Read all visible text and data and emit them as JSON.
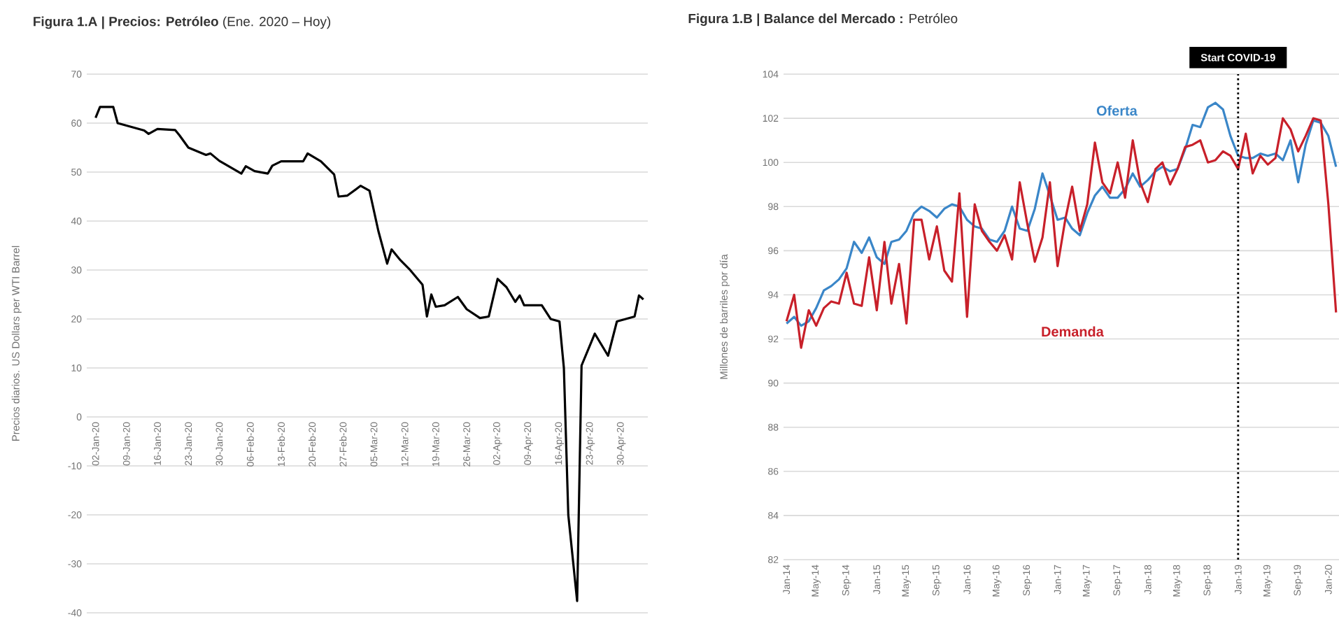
{
  "chart_data": [
    {
      "type": "line",
      "title": "**Figura 1.A | Precios: Petróleo** (Ene. 2020 – Hoy)",
      "ylabel": "Precios diarios. US Dollars per WTI Barrel",
      "series": [
        {
          "color": "#000000",
          "x": [
            "2020-01-02",
            "2020-01-03",
            "2020-01-06",
            "2020-01-07",
            "2020-01-09",
            "2020-01-13",
            "2020-01-14",
            "2020-01-16",
            "2020-01-20",
            "2020-01-21",
            "2020-01-23",
            "2020-01-27",
            "2020-01-28",
            "2020-01-30",
            "2020-02-04",
            "2020-02-05",
            "2020-02-07",
            "2020-02-10",
            "2020-02-11",
            "2020-02-13",
            "2020-02-18",
            "2020-02-19",
            "2020-02-22",
            "2020-02-25",
            "2020-02-26",
            "2020-02-28",
            "2020-03-02",
            "2020-03-04",
            "2020-03-06",
            "2020-03-08",
            "2020-03-09",
            "2020-03-11",
            "2020-03-13",
            "2020-03-16",
            "2020-03-17",
            "2020-03-18",
            "2020-03-19",
            "2020-03-21",
            "2020-03-24",
            "2020-03-26",
            "2020-03-29",
            "2020-03-31",
            "2020-04-02",
            "2020-04-04",
            "2020-04-06",
            "2020-04-07",
            "2020-04-08",
            "2020-04-12",
            "2020-04-14",
            "2020-04-16",
            "2020-04-17",
            "2020-04-18",
            "2020-04-20",
            "2020-04-21",
            "2020-04-24",
            "2020-04-27",
            "2020-04-29",
            "2020-05-03",
            "2020-05-04",
            "2020-05-05"
          ],
          "values": [
            61.1,
            63.3,
            63.3,
            60,
            59.5,
            58.5,
            57.8,
            58.8,
            58.6,
            57.5,
            55,
            53.5,
            53.8,
            52.3,
            49.7,
            51.2,
            50.2,
            49.7,
            51.3,
            52.2,
            52.2,
            53.8,
            52.2,
            49.5,
            45,
            45.2,
            47.2,
            46.2,
            38,
            31.3,
            34.2,
            32,
            30.2,
            27,
            20.5,
            25,
            22.5,
            22.8,
            24.5,
            22,
            20.2,
            20.5,
            28.2,
            26.5,
            23.5,
            24.8,
            22.8,
            22.8,
            20,
            19.5,
            10,
            -20,
            -37.6,
            10.5,
            17,
            12.5,
            19.5,
            20.5,
            24.8,
            24
          ]
        }
      ],
      "xlim": [
        "2019-12-31",
        "2020-05-06"
      ],
      "ylim": [
        -40,
        70
      ],
      "xticks": [
        {
          "value": "2020-01-02",
          "label": "02-Jan-20"
        },
        {
          "value": "2020-01-09",
          "label": "09-Jan-20"
        },
        {
          "value": "2020-01-16",
          "label": "16-Jan-20"
        },
        {
          "value": "2020-01-23",
          "label": "23-Jan-20"
        },
        {
          "value": "2020-01-30",
          "label": "30-Jan-20"
        },
        {
          "value": "2020-02-06",
          "label": "06-Feb-20"
        },
        {
          "value": "2020-02-13",
          "label": "13-Feb-20"
        },
        {
          "value": "2020-02-20",
          "label": "20-Feb-20"
        },
        {
          "value": "2020-02-27",
          "label": "27-Feb-20"
        },
        {
          "value": "2020-03-05",
          "label": "05-Mar-20"
        },
        {
          "value": "2020-03-12",
          "label": "12-Mar-20"
        },
        {
          "value": "2020-03-19",
          "label": "19-Mar-20"
        },
        {
          "value": "2020-03-26",
          "label": "26-Mar-20"
        },
        {
          "value": "2020-04-02",
          "label": "02-Apr-20"
        },
        {
          "value": "2020-04-09",
          "label": "09-Apr-20"
        },
        {
          "value": "2020-04-16",
          "label": "16-Apr-20"
        },
        {
          "value": "2020-04-23",
          "label": "23-Apr-20"
        },
        {
          "value": "2020-04-30",
          "label": "30-Apr-20"
        }
      ],
      "yticks": [
        -40,
        -30,
        -20,
        -10,
        0,
        10,
        20,
        30,
        40,
        50,
        60,
        70
      ],
      "grid": "y",
      "line_style": "solid"
    },
    {
      "type": "line",
      "title": "**Figura 1.B | Balance del Mercado :** Petróleo",
      "ylabel": "Millones de barriles por día",
      "x": [
        "2014-01",
        "2014-02",
        "2014-03",
        "2014-04",
        "2014-05",
        "2014-06",
        "2014-07",
        "2014-08",
        "2014-09",
        "2014-10",
        "2014-11",
        "2014-12",
        "2015-01",
        "2015-02",
        "2015-03",
        "2015-04",
        "2015-05",
        "2015-06",
        "2015-07",
        "2015-08",
        "2015-09",
        "2015-10",
        "2015-11",
        "2015-12",
        "2016-01",
        "2016-02",
        "2016-03",
        "2016-04",
        "2016-05",
        "2016-06",
        "2016-07",
        "2016-08",
        "2016-09",
        "2016-10",
        "2016-11",
        "2016-12",
        "2017-01",
        "2017-02",
        "2017-03",
        "2017-04",
        "2017-05",
        "2017-06",
        "2017-07",
        "2017-08",
        "2017-09",
        "2017-10",
        "2017-11",
        "2017-12",
        "2018-01",
        "2018-02",
        "2018-03",
        "2018-04",
        "2018-05",
        "2018-06",
        "2018-07",
        "2018-08",
        "2018-09",
        "2018-10",
        "2018-11",
        "2018-12",
        "2019-01",
        "2019-02",
        "2019-03",
        "2019-04",
        "2019-05",
        "2019-06",
        "2019-07",
        "2019-08",
        "2019-09",
        "2019-10",
        "2019-11",
        "2019-12",
        "2020-01",
        "2020-02"
      ],
      "series": [
        {
          "name": "Oferta",
          "color": "#3a86c8",
          "values": [
            92.7,
            93.0,
            92.6,
            92.8,
            93.4,
            94.2,
            94.4,
            94.7,
            95.2,
            96.4,
            95.9,
            96.6,
            95.7,
            95.4,
            96.4,
            96.5,
            96.9,
            97.7,
            98.0,
            97.8,
            97.5,
            97.9,
            98.1,
            98.0,
            97.4,
            97.1,
            97.0,
            96.5,
            96.4,
            96.9,
            98.0,
            97.0,
            96.9,
            97.9,
            99.5,
            98.5,
            97.4,
            97.5,
            97.0,
            96.7,
            97.7,
            98.5,
            98.9,
            98.4,
            98.4,
            98.8,
            99.5,
            98.9,
            99.2,
            99.6,
            99.8,
            99.6,
            99.7,
            100.6,
            101.7,
            101.6,
            102.5,
            102.7,
            102.4,
            101.2,
            100.3,
            100.2,
            100.2,
            100.4,
            100.3,
            100.4,
            100.1,
            101.0,
            99.1,
            100.8,
            101.9,
            101.8,
            101.2,
            99.8
          ]
        },
        {
          "name": "Demanda",
          "color": "#c8202a",
          "values": [
            92.8,
            94.0,
            91.6,
            93.3,
            92.6,
            93.4,
            93.7,
            93.6,
            95.0,
            93.6,
            93.5,
            95.7,
            93.3,
            96.4,
            93.6,
            95.4,
            92.7,
            97.4,
            97.4,
            95.6,
            97.1,
            95.1,
            94.6,
            98.6,
            93.0,
            98.1,
            96.9,
            96.4,
            96.0,
            96.7,
            95.6,
            99.1,
            97.2,
            95.5,
            96.6,
            99.1,
            95.3,
            97.4,
            98.9,
            96.9,
            98.1,
            100.9,
            99.1,
            98.6,
            100.0,
            98.4,
            101.0,
            99.1,
            98.2,
            99.7,
            100.0,
            99.0,
            99.7,
            100.7,
            100.8,
            101.0,
            100.0,
            100.1,
            100.5,
            100.3,
            99.7,
            101.3,
            99.5,
            100.3,
            99.9,
            100.2,
            102.0,
            101.5,
            100.5,
            101.2,
            102.0,
            101.9,
            98.1,
            93.2
          ]
        }
      ],
      "xlim": [
        "2013-12-20",
        "2020-02-13"
      ],
      "ylim": [
        82,
        104
      ],
      "xticks": [
        {
          "value": "2014-01",
          "label": "Jan-14"
        },
        {
          "value": "2014-05",
          "label": "May-14"
        },
        {
          "value": "2014-09",
          "label": "Sep-14"
        },
        {
          "value": "2015-01",
          "label": "Jan-15"
        },
        {
          "value": "2015-05",
          "label": "May-15"
        },
        {
          "value": "2015-09",
          "label": "Sep-15"
        },
        {
          "value": "2016-01",
          "label": "Jan-16"
        },
        {
          "value": "2016-05",
          "label": "May-16"
        },
        {
          "value": "2016-09",
          "label": "Sep-16"
        },
        {
          "value": "2017-01",
          "label": "Jan-17"
        },
        {
          "value": "2017-05",
          "label": "May-17"
        },
        {
          "value": "2017-09",
          "label": "Sep-17"
        },
        {
          "value": "2018-01",
          "label": "Jan-18"
        },
        {
          "value": "2018-05",
          "label": "May-18"
        },
        {
          "value": "2018-09",
          "label": "Sep-18"
        },
        {
          "value": "2019-01",
          "label": "Jan-19"
        },
        {
          "value": "2019-05",
          "label": "May-19"
        },
        {
          "value": "2019-09",
          "label": "Sep-19"
        },
        {
          "value": "2020-01",
          "label": "Jan-20"
        }
      ],
      "yticks": [
        82,
        84,
        86,
        88,
        90,
        92,
        94,
        96,
        98,
        100,
        102,
        104
      ],
      "grid": "y",
      "line_style": "solid",
      "ref_lines": [
        {
          "axis": "x",
          "value": "2019-01",
          "label": "Start COVID-19",
          "color": "#000000",
          "line_style": "dotted"
        }
      ]
    }
  ]
}
